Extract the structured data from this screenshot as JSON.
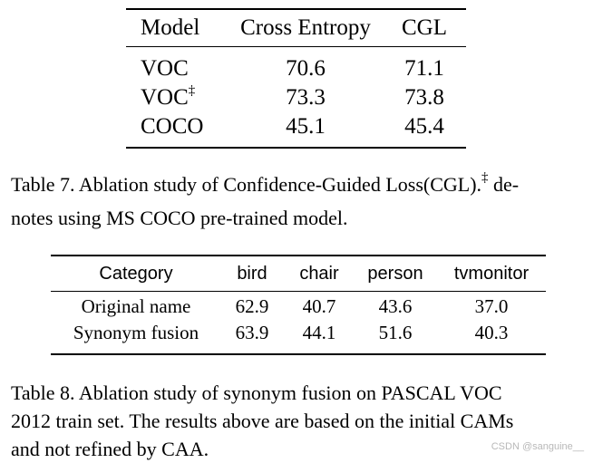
{
  "table7": {
    "headers": [
      "Model",
      "Cross Entropy",
      "CGL"
    ],
    "rows": [
      {
        "model": "VOC",
        "dagger": "",
        "ce": "70.6",
        "cgl": "71.1"
      },
      {
        "model": "VOC",
        "dagger": "‡",
        "ce": "73.3",
        "cgl": "73.8"
      },
      {
        "model": "COCO",
        "dagger": "",
        "ce": "45.1",
        "cgl": "45.4"
      }
    ]
  },
  "caption7": {
    "line1_pre": "Table 7.  Ablation study of Confidence-Guided Loss(CGL).",
    "line1_mark": "‡",
    "line1_post": " de-",
    "line2": "notes using MS COCO pre-trained model."
  },
  "table8": {
    "headers": [
      "Category",
      "bird",
      "chair",
      "person",
      "tvmonitor"
    ],
    "rows": [
      {
        "category": "Original name",
        "bird": "62.9",
        "chair": "40.7",
        "person": "43.6",
        "tvmonitor": "37.0"
      },
      {
        "category": "Synonym fusion",
        "bird": "63.9",
        "chair": "44.1",
        "person": "51.6",
        "tvmonitor": "40.3"
      }
    ]
  },
  "caption8": {
    "line1": "Table 8.  Ablation study of synonym fusion on PASCAL VOC",
    "line2": "2012 train set.  The results above are based on the initial CAMs",
    "line3": "and not refined by CAA."
  },
  "watermark": "CSDN @sanguine__"
}
